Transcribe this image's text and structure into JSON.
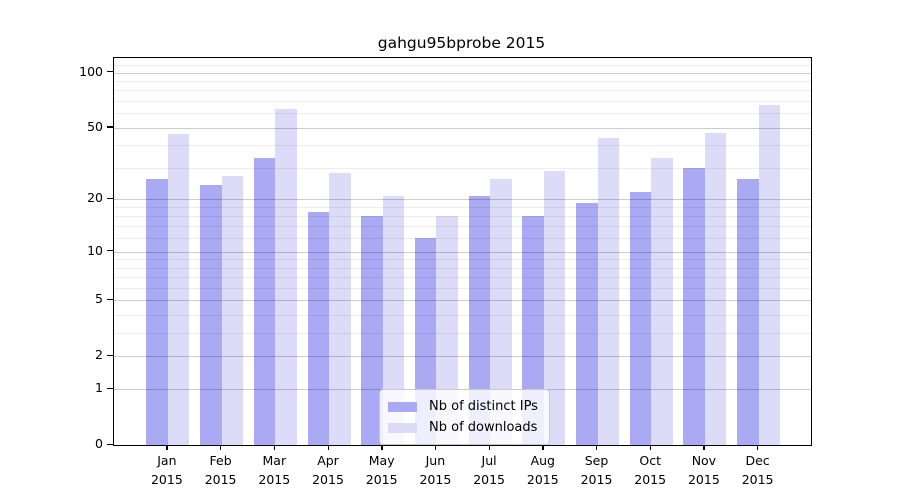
{
  "chart_data": {
    "type": "bar",
    "title": "gahgu95bprobe 2015",
    "categories": [
      "Jan",
      "Feb",
      "Mar",
      "Apr",
      "May",
      "Jun",
      "Jul",
      "Aug",
      "Sep",
      "Oct",
      "Nov",
      "Dec"
    ],
    "year_label": "2015",
    "series": [
      {
        "name": "Nb of distinct IPs",
        "color": "#a9a9f4",
        "values": [
          26,
          24,
          34,
          17,
          16,
          12,
          21,
          16,
          19,
          22,
          30,
          26
        ]
      },
      {
        "name": "Nb of downloads",
        "color": "#dcdcf9",
        "values": [
          46,
          27,
          63,
          28,
          21,
          16,
          26,
          29,
          44,
          34,
          47,
          67
        ]
      }
    ],
    "xlabel": "",
    "ylabel": "",
    "yscale": "log1p",
    "yticks": [
      0,
      1,
      2,
      5,
      10,
      20,
      50,
      100
    ],
    "minor_gridlines": [
      3,
      4,
      6,
      7,
      8,
      9,
      12,
      14,
      16,
      18,
      30,
      40,
      60,
      70,
      80,
      90,
      110
    ],
    "ylim": [
      0,
      120
    ],
    "grid": true,
    "legend_position": "inside-bottom-center",
    "background_color": "#ffffff",
    "spine_color": "#000000"
  }
}
